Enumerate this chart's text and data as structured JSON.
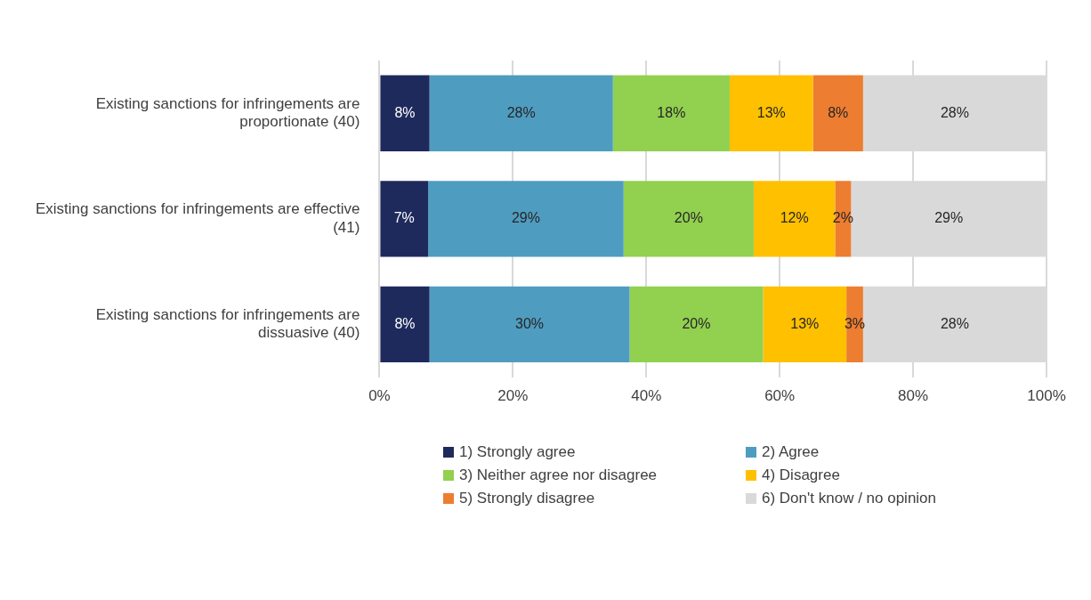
{
  "chart_data": {
    "type": "bar",
    "orientation": "horizontal",
    "stacked": true,
    "categories": [
      "Existing sanctions for infringements are proportionate (40)",
      "Existing sanctions for infringements are effective (41)",
      "Existing sanctions for infringements are dissuasive (40)"
    ],
    "series": [
      {
        "name": "1) Strongly agree",
        "color": "#1f2a5c",
        "values": [
          7.5,
          7.3,
          7.5
        ],
        "value_labels": [
          "8%",
          "7%",
          "8%"
        ]
      },
      {
        "name": "2) Agree",
        "color": "#4f9cc1",
        "values": [
          27.5,
          29.3,
          30
        ],
        "value_labels": [
          "28%",
          "29%",
          "30%"
        ]
      },
      {
        "name": "3) Neither agree nor disagree",
        "color": "#92d050",
        "values": [
          17.5,
          19.5,
          20
        ],
        "value_labels": [
          "18%",
          "20%",
          "20%"
        ]
      },
      {
        "name": "4) Disagree",
        "color": "#ffc000",
        "values": [
          12.5,
          12.2,
          12.5
        ],
        "value_labels": [
          "13%",
          "12%",
          "13%"
        ]
      },
      {
        "name": "5) Strongly disagree",
        "color": "#ed7d31",
        "values": [
          7.5,
          2.4,
          2.5
        ],
        "value_labels": [
          "8%",
          "2%",
          "3%"
        ]
      },
      {
        "name": "6) Don't know / no opinion",
        "color": "#d9d9d9",
        "values": [
          27.5,
          29.3,
          27.5
        ],
        "value_labels": [
          "28%",
          "29%",
          "28%"
        ]
      }
    ],
    "xlim": [
      0,
      100
    ],
    "xticks": [
      {
        "value": 0,
        "label": "0%"
      },
      {
        "value": 20,
        "label": "20%"
      },
      {
        "value": 40,
        "label": "40%"
      },
      {
        "value": 60,
        "label": "60%"
      },
      {
        "value": 80,
        "label": "80%"
      },
      {
        "value": 100,
        "label": "100%"
      }
    ],
    "grid": "x",
    "legend": "bottom"
  }
}
